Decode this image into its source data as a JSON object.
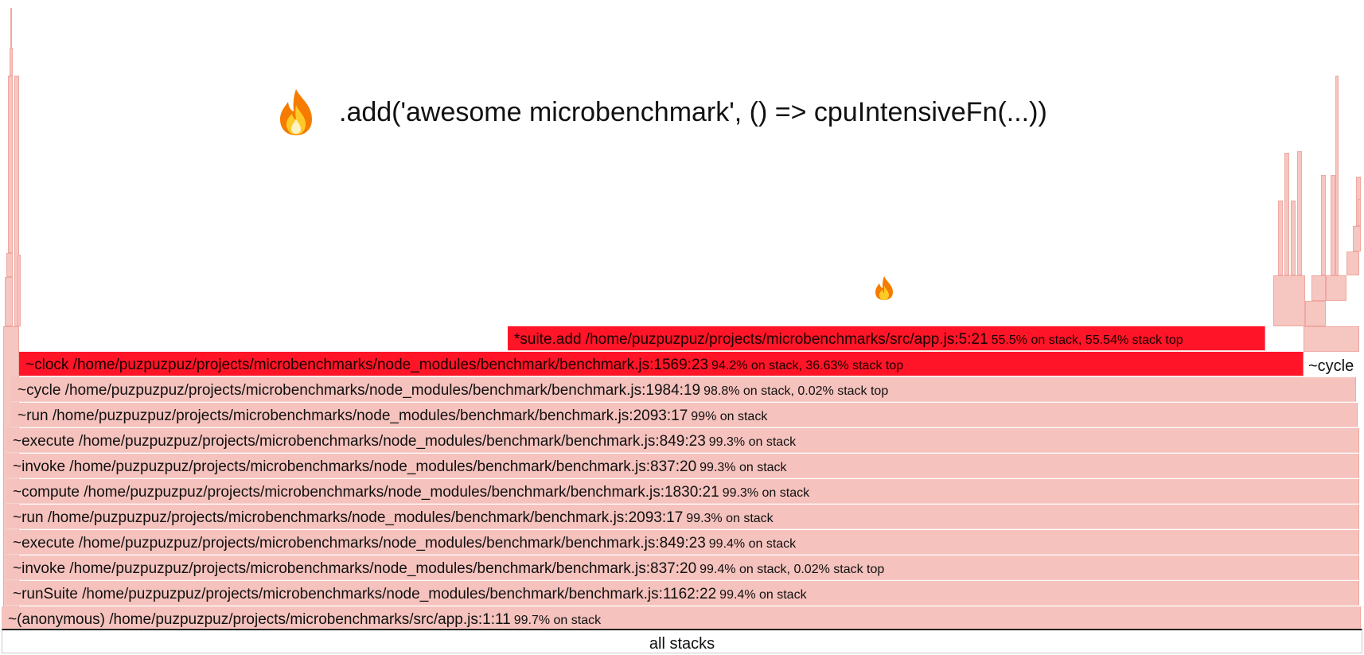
{
  "headline": {
    "icon": "flame-icon",
    "code": ".add('awesome microbenchmark', () => cpuIntensiveFn(...))"
  },
  "marker": {
    "icon": "flame-icon"
  },
  "root_frame": {
    "label": "all stacks"
  },
  "frames": [
    {
      "name": "*suite.add /home/puzpuzpuz/projects/microbenchmarks/src/app.js:5:21",
      "stats": "55.5% on stack, 55.54% stack top",
      "style": "hot"
    },
    {
      "name": "~clock /home/puzpuzpuz/projects/microbenchmarks/node_modules/benchmark/benchmark.js:1569:23",
      "stats": "94.2% on stack, 36.63% stack top",
      "style": "hot"
    },
    {
      "name": "~cycle",
      "stats": "",
      "style": "side"
    },
    {
      "name": "~cycle /home/puzpuzpuz/projects/microbenchmarks/node_modules/benchmark/benchmark.js:1984:19",
      "stats": "98.8% on stack, 0.02% stack top",
      "style": "normal"
    },
    {
      "name": "~run /home/puzpuzpuz/projects/microbenchmarks/node_modules/benchmark/benchmark.js:2093:17",
      "stats": "99% on stack",
      "style": "normal"
    },
    {
      "name": "~execute /home/puzpuzpuz/projects/microbenchmarks/node_modules/benchmark/benchmark.js:849:23",
      "stats": "99.3% on stack",
      "style": "normal"
    },
    {
      "name": "~invoke /home/puzpuzpuz/projects/microbenchmarks/node_modules/benchmark/benchmark.js:837:20",
      "stats": "99.3% on stack",
      "style": "normal"
    },
    {
      "name": "~compute /home/puzpuzpuz/projects/microbenchmarks/node_modules/benchmark/benchmark.js:1830:21",
      "stats": "99.3% on stack",
      "style": "normal"
    },
    {
      "name": "~run /home/puzpuzpuz/projects/microbenchmarks/node_modules/benchmark/benchmark.js:2093:17",
      "stats": "99.3% on stack",
      "style": "normal"
    },
    {
      "name": "~execute /home/puzpuzpuz/projects/microbenchmarks/node_modules/benchmark/benchmark.js:849:23",
      "stats": "99.4% on stack",
      "style": "normal"
    },
    {
      "name": "~invoke /home/puzpuzpuz/projects/microbenchmarks/node_modules/benchmark/benchmark.js:837:20",
      "stats": "99.4% on stack, 0.02% stack top",
      "style": "normal"
    },
    {
      "name": "~runSuite /home/puzpuzpuz/projects/microbenchmarks/node_modules/benchmark/benchmark.js:1162:22",
      "stats": "99.4% on stack",
      "style": "normal"
    },
    {
      "name": "~(anonymous) /home/puzpuzpuz/projects/microbenchmarks/src/app.js:1:11",
      "stats": "99.7% on stack",
      "style": "normal"
    }
  ],
  "colors": {
    "hot": "#ff1527",
    "normal": "#f5c2bd",
    "border": "#efa9a2"
  }
}
